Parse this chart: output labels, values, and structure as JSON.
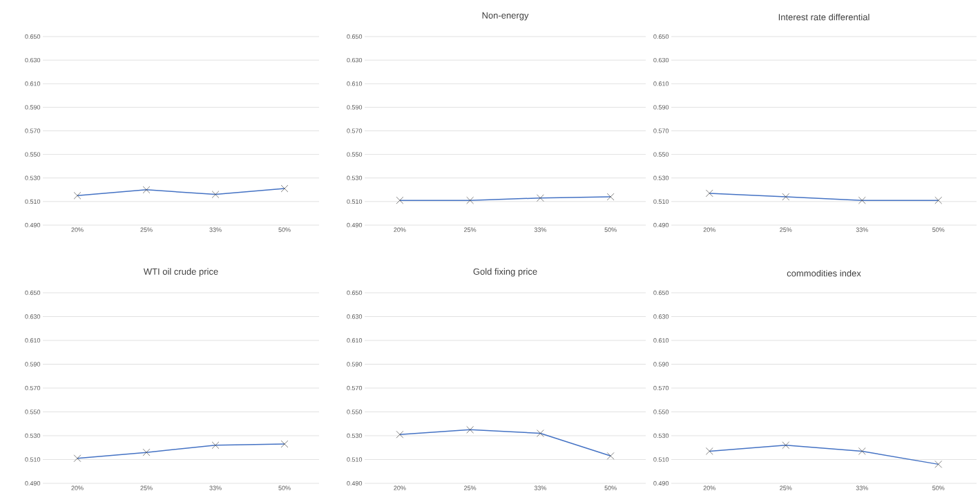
{
  "chart_data": [
    {
      "type": "line",
      "categories": [
        "20%",
        "25%",
        "33%",
        "50%"
      ],
      "values": [
        0.515,
        0.52,
        0.516,
        0.521
      ],
      "color": "#4472c4",
      "ylim": [
        0.49,
        0.65
      ],
      "yticks": [
        {
          "value": 0.49,
          "label": "0.490"
        },
        {
          "value": 0.51,
          "label": "0.510"
        },
        {
          "value": 0.53,
          "label": "0.530"
        },
        {
          "value": 0.55,
          "label": "0.550"
        },
        {
          "value": 0.57,
          "label": "0.570"
        },
        {
          "value": 0.59,
          "label": "0.590"
        },
        {
          "value": 0.61,
          "label": "0.610"
        },
        {
          "value": 0.63,
          "label": "0.630"
        },
        {
          "value": 0.65,
          "label": "0.650"
        }
      ],
      "grid": "y",
      "marker": "cross",
      "line_style": "solid"
    },
    {
      "type": "line",
      "title": "Non-energy",
      "categories": [
        "20%",
        "25%",
        "33%",
        "50%"
      ],
      "values": [
        0.511,
        0.511,
        0.513,
        0.514
      ],
      "color": "#4472c4",
      "ylim": [
        0.49,
        0.65
      ],
      "yticks": [
        {
          "value": 0.49,
          "label": "0.490"
        },
        {
          "value": 0.51,
          "label": "0.510"
        },
        {
          "value": 0.53,
          "label": "0.530"
        },
        {
          "value": 0.55,
          "label": "0.550"
        },
        {
          "value": 0.57,
          "label": "0.570"
        },
        {
          "value": 0.59,
          "label": "0.590"
        },
        {
          "value": 0.61,
          "label": "0.610"
        },
        {
          "value": 0.63,
          "label": "0.630"
        },
        {
          "value": 0.65,
          "label": "0.650"
        }
      ],
      "grid": "y",
      "marker": "cross",
      "line_style": "solid"
    },
    {
      "type": "line",
      "title": "Interest rate differential",
      "categories": [
        "20%",
        "25%",
        "33%",
        "50%"
      ],
      "values": [
        0.517,
        0.514,
        0.511,
        0.511
      ],
      "color": "#4472c4",
      "ylim": [
        0.49,
        0.65
      ],
      "yticks": [
        {
          "value": 0.49,
          "label": "0.490"
        },
        {
          "value": 0.51,
          "label": "0.510"
        },
        {
          "value": 0.53,
          "label": "0.530"
        },
        {
          "value": 0.55,
          "label": "0.550"
        },
        {
          "value": 0.57,
          "label": "0.570"
        },
        {
          "value": 0.59,
          "label": "0.590"
        },
        {
          "value": 0.61,
          "label": "0.610"
        },
        {
          "value": 0.63,
          "label": "0.630"
        },
        {
          "value": 0.65,
          "label": "0.650"
        }
      ],
      "grid": "y",
      "marker": "cross",
      "line_style": "solid"
    },
    {
      "type": "line",
      "title": "WTI oil crude price",
      "categories": [
        "20%",
        "25%",
        "33%",
        "50%"
      ],
      "values": [
        0.511,
        0.516,
        0.522,
        0.523
      ],
      "color": "#4472c4",
      "ylim": [
        0.49,
        0.65
      ],
      "yticks": [
        {
          "value": 0.49,
          "label": "0.490"
        },
        {
          "value": 0.51,
          "label": "0.510"
        },
        {
          "value": 0.53,
          "label": "0.530"
        },
        {
          "value": 0.55,
          "label": "0.550"
        },
        {
          "value": 0.57,
          "label": "0.570"
        },
        {
          "value": 0.59,
          "label": "0.590"
        },
        {
          "value": 0.61,
          "label": "0.610"
        },
        {
          "value": 0.63,
          "label": "0.630"
        },
        {
          "value": 0.65,
          "label": "0.650"
        }
      ],
      "grid": "y",
      "marker": "cross",
      "line_style": "solid"
    },
    {
      "type": "line",
      "title": "Gold fixing price",
      "categories": [
        "20%",
        "25%",
        "33%",
        "50%"
      ],
      "values": [
        0.531,
        0.535,
        0.532,
        0.513
      ],
      "color": "#4472c4",
      "ylim": [
        0.49,
        0.65
      ],
      "yticks": [
        {
          "value": 0.49,
          "label": "0.490"
        },
        {
          "value": 0.51,
          "label": "0.510"
        },
        {
          "value": 0.53,
          "label": "0.530"
        },
        {
          "value": 0.55,
          "label": "0.550"
        },
        {
          "value": 0.57,
          "label": "0.570"
        },
        {
          "value": 0.59,
          "label": "0.590"
        },
        {
          "value": 0.61,
          "label": "0.610"
        },
        {
          "value": 0.63,
          "label": "0.630"
        },
        {
          "value": 0.65,
          "label": "0.650"
        }
      ],
      "grid": "y",
      "marker": "cross",
      "line_style": "solid"
    },
    {
      "type": "line",
      "title": "commodities index",
      "categories": [
        "20%",
        "25%",
        "33%",
        "50%"
      ],
      "values": [
        0.517,
        0.522,
        0.517,
        0.506
      ],
      "color": "#4472c4",
      "ylim": [
        0.49,
        0.65
      ],
      "yticks": [
        {
          "value": 0.49,
          "label": "0.490"
        },
        {
          "value": 0.51,
          "label": "0.510"
        },
        {
          "value": 0.53,
          "label": "0.530"
        },
        {
          "value": 0.55,
          "label": "0.550"
        },
        {
          "value": 0.57,
          "label": "0.570"
        },
        {
          "value": 0.59,
          "label": "0.590"
        },
        {
          "value": 0.61,
          "label": "0.610"
        },
        {
          "value": 0.63,
          "label": "0.630"
        },
        {
          "value": 0.65,
          "label": "0.650"
        }
      ],
      "grid": "y",
      "marker": "cross",
      "line_style": "solid"
    }
  ]
}
